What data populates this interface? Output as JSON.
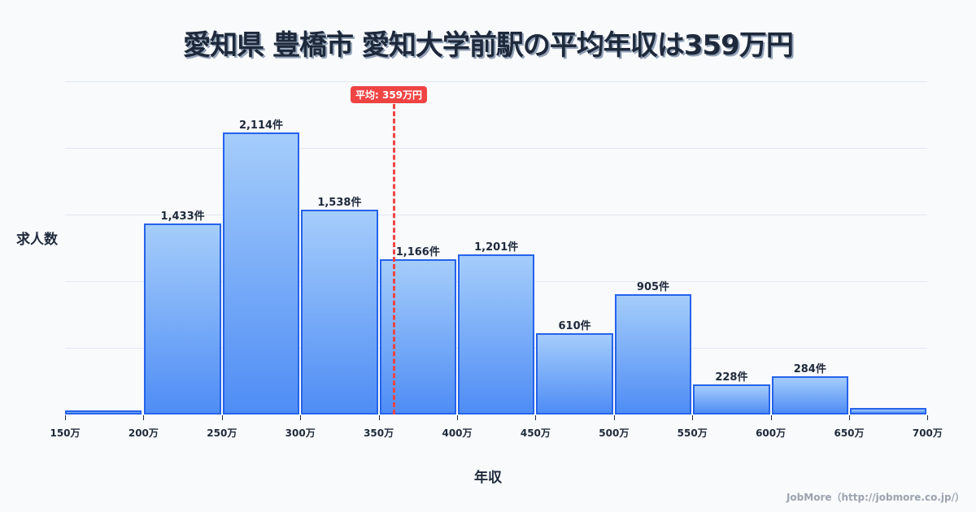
{
  "title": "愛知県 豊橋市 愛知大学前駅の平均年収は359万円",
  "ylabel": "求人数",
  "xlabel": "年収",
  "mean_badge": "平均: 359万円",
  "footer": "JobMore（http://jobmore.co.jp/）",
  "colors": {
    "bar_border": "#2563eb",
    "bar_top": "#a5cdfb",
    "bar_bottom": "#4f8df5",
    "mean": "#ef4444",
    "background": "#f8fafc"
  },
  "chart_data": {
    "type": "bar",
    "title": "愛知県 豊橋市 愛知大学前駅の平均年収は359万円",
    "xlabel": "年収",
    "ylabel": "求人数",
    "categories": [
      "150-200万",
      "200-250万",
      "250-300万",
      "300-350万",
      "350-400万",
      "400-450万",
      "450-500万",
      "500-550万",
      "550-600万",
      "600-650万",
      "650-700万"
    ],
    "values": [
      30,
      1433,
      2114,
      1538,
      1166,
      1201,
      610,
      905,
      228,
      284,
      50
    ],
    "data_labels": [
      "",
      "1,433件",
      "2,114件",
      "1,538件",
      "1,166件",
      "1,201件",
      "610件",
      "905件",
      "228件",
      "284件",
      ""
    ],
    "x_ticks": [
      "150万",
      "200万",
      "250万",
      "300万",
      "350万",
      "400万",
      "450万",
      "500万",
      "550万",
      "600万",
      "650万",
      "700万"
    ],
    "ylim": [
      0,
      2500
    ],
    "grid": true,
    "mean": 359,
    "mean_label": "平均: 359万円"
  }
}
